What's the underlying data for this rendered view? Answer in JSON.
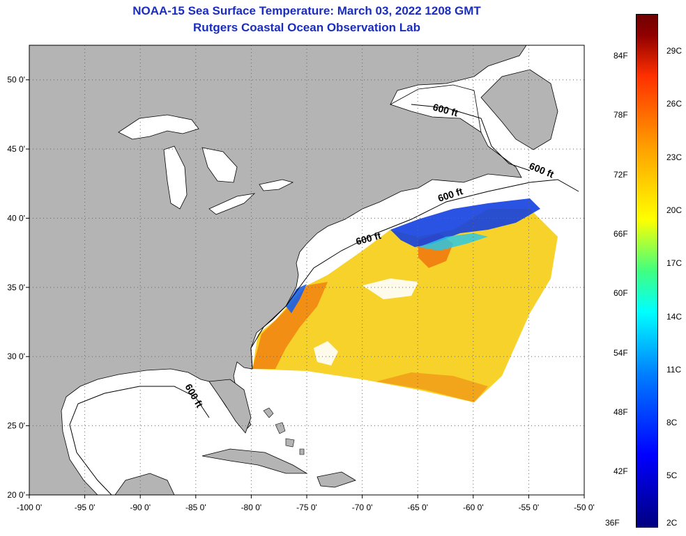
{
  "title": "NOAA-15 Sea Surface Temperature:  March 03, 2022 1208 GMT",
  "subtitle": "Rutgers Coastal Ocean Observation Lab",
  "axes": {
    "lon_ticks": [
      "-100 0'",
      "-95 0'",
      "-90 0'",
      "-85 0'",
      "-80 0'",
      "-75 0'",
      "-70 0'",
      "-65 0'",
      "-60 0'",
      "-55 0'",
      "-50 0'"
    ],
    "lon_values": [
      -100,
      -95,
      -90,
      -85,
      -80,
      -75,
      -70,
      -65,
      -60,
      -55,
      -50
    ],
    "lat_ticks": [
      "50 0'",
      "45 0'",
      "40 0'",
      "35 0'",
      "30 0'",
      "25 0'",
      "20 0'"
    ],
    "lat_values": [
      50,
      45,
      40,
      35,
      30,
      25,
      20
    ],
    "lon_range": [
      -100,
      -50
    ],
    "lat_range": [
      20,
      52.5
    ],
    "grid": true
  },
  "contour_labels": [
    "600 ft",
    "600 ft",
    "600 ft",
    "600 ft",
    "600 ft"
  ],
  "colorbar": {
    "fahrenheit": [
      "84F",
      "78F",
      "72F",
      "66F",
      "60F",
      "54F",
      "48F",
      "42F",
      "36F"
    ],
    "celsius": [
      "29C",
      "26C",
      "23C",
      "20C",
      "17C",
      "14C",
      "11C",
      "8C",
      "5C",
      "2C"
    ],
    "colors": [
      "#000080",
      "#0000ff",
      "#0080ff",
      "#00ffff",
      "#ffff00",
      "#ffa000",
      "#ff3000",
      "#700000"
    ]
  },
  "colors": {
    "land": "#b4b4b4",
    "water": "#ffffff",
    "title": "#1a2dbf"
  }
}
